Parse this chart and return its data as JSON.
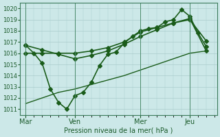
{
  "title": "",
  "xlabel": "Pression niveau de la mer( hPa )",
  "ylabel": "",
  "bg_color": "#cce8e8",
  "grid_color": "#b8d8d8",
  "line_color": "#1a5c1a",
  "ylim": [
    1010.5,
    1020.5
  ],
  "yticks": [
    1011,
    1012,
    1013,
    1014,
    1015,
    1016,
    1017,
    1018,
    1019,
    1020
  ],
  "xtick_labels": [
    "Mar",
    "Ven",
    "Mer",
    "Jeu"
  ],
  "xtick_positions": [
    0,
    36,
    84,
    120
  ],
  "vline_positions": [
    0,
    36,
    84,
    120
  ],
  "series": [
    {
      "x": [
        0,
        6,
        12,
        18,
        24,
        30,
        36,
        42,
        48,
        54,
        60,
        66,
        72,
        78,
        84,
        90,
        96,
        102,
        108,
        114,
        120,
        126,
        132
      ],
      "y": [
        1016.7,
        1016.0,
        1015.1,
        1012.8,
        1011.6,
        1011.0,
        1012.2,
        1012.5,
        1013.4,
        1014.9,
        1015.9,
        1016.1,
        1016.9,
        1017.5,
        1018.0,
        1018.2,
        1018.3,
        1018.8,
        1019.0,
        1019.9,
        1019.3,
        1017.8,
        1016.6
      ],
      "marker": "D",
      "markersize": 3,
      "linewidth": 1.2
    },
    {
      "x": [
        0,
        12,
        24,
        36,
        48,
        60,
        72,
        84,
        96,
        108,
        120,
        132
      ],
      "y": [
        1016.0,
        1016.0,
        1016.0,
        1016.0,
        1016.2,
        1016.5,
        1017.0,
        1017.9,
        1018.3,
        1018.7,
        1019.1,
        1016.2
      ],
      "marker": "D",
      "markersize": 3,
      "linewidth": 1.2
    },
    {
      "x": [
        0,
        12,
        24,
        36,
        48,
        60,
        72,
        84,
        96,
        108,
        120,
        132
      ],
      "y": [
        1011.5,
        1012.0,
        1012.5,
        1012.8,
        1013.2,
        1013.6,
        1014.0,
        1014.5,
        1015.0,
        1015.5,
        1016.0,
        1016.2
      ],
      "marker": null,
      "markersize": 0,
      "linewidth": 1.0
    },
    {
      "x": [
        0,
        12,
        24,
        36,
        48,
        60,
        72,
        84,
        96,
        108,
        120,
        132
      ],
      "y": [
        1016.7,
        1016.3,
        1015.9,
        1015.5,
        1015.8,
        1016.2,
        1016.8,
        1017.5,
        1018.1,
        1018.7,
        1019.0,
        1017.1
      ],
      "marker": "D",
      "markersize": 3,
      "linewidth": 1.2
    }
  ]
}
